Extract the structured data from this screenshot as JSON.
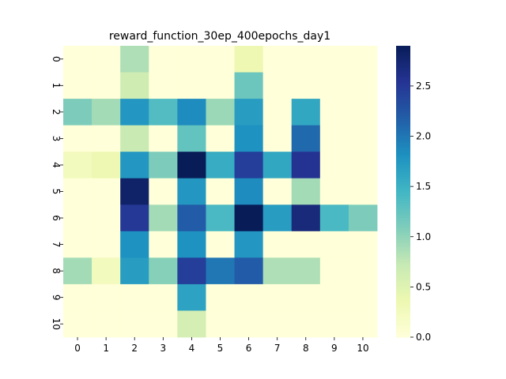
{
  "chart_data": {
    "type": "heatmap",
    "title": "reward_function_30ep_400epochs_day1",
    "xlabel": "",
    "ylabel": "",
    "x_categories": [
      "0",
      "1",
      "2",
      "3",
      "4",
      "5",
      "6",
      "7",
      "8",
      "9",
      "10"
    ],
    "y_categories": [
      "0",
      "1",
      "2",
      "3",
      "4",
      "5",
      "6",
      "7",
      "8",
      "9",
      "10"
    ],
    "values": [
      [
        0,
        0,
        0.85,
        0,
        0,
        0,
        0.35,
        0,
        0,
        0,
        0
      ],
      [
        0,
        0,
        0.65,
        0,
        0,
        0,
        1.2,
        0,
        0,
        0,
        0
      ],
      [
        1.1,
        0.9,
        1.75,
        1.35,
        1.85,
        0.95,
        1.7,
        0,
        1.6,
        0,
        0
      ],
      [
        0,
        0,
        0.7,
        0,
        1.25,
        0,
        1.8,
        0,
        2.1,
        0,
        0
      ],
      [
        0.25,
        0.35,
        1.75,
        1.1,
        2.9,
        1.55,
        2.45,
        1.6,
        2.55,
        0,
        0
      ],
      [
        0,
        0,
        2.8,
        0,
        1.75,
        0,
        1.85,
        0,
        0.9,
        0,
        0
      ],
      [
        0,
        0,
        2.5,
        0.9,
        2.2,
        1.4,
        2.95,
        1.7,
        2.7,
        1.4,
        1.1
      ],
      [
        0,
        0,
        1.8,
        0,
        1.8,
        0,
        1.75,
        0,
        0,
        0,
        0
      ],
      [
        0.9,
        0.25,
        1.7,
        1.05,
        2.45,
        2.0,
        2.2,
        0.85,
        0.85,
        0,
        0
      ],
      [
        0,
        0,
        0,
        0,
        1.65,
        0,
        0,
        0,
        0,
        0,
        0
      ],
      [
        0,
        0,
        0,
        0,
        0.6,
        0,
        0,
        0,
        0,
        0,
        0
      ]
    ],
    "colormap": "YlGnBu",
    "vmin": 0,
    "vmax": 2.9,
    "colorbar_ticks": [
      0.0,
      0.5,
      1.0,
      1.5,
      2.0,
      2.5
    ],
    "colorbar_tick_labels": [
      "0.0",
      "0.5",
      "1.0",
      "1.5",
      "2.0",
      "2.5"
    ],
    "grid": false
  }
}
